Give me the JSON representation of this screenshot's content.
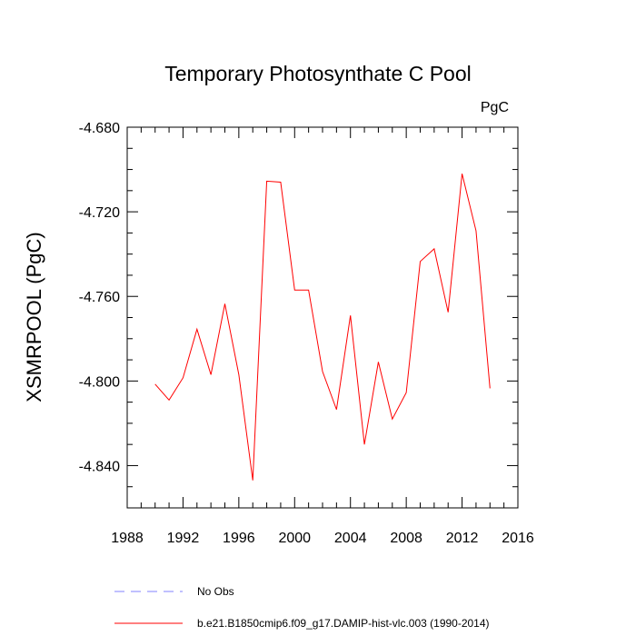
{
  "chart_data": {
    "type": "line",
    "title": "Temporary Photosynthate C Pool",
    "units_label": "PgC",
    "ylabel": "XSMRPOOL  (PgC)",
    "xlabel": "",
    "xlim": [
      1988,
      2016
    ],
    "ylim": [
      -4.86,
      -4.68
    ],
    "x_ticks": [
      1988,
      1992,
      1996,
      2000,
      2004,
      2008,
      2012,
      2016
    ],
    "y_ticks": [
      -4.84,
      -4.8,
      -4.76,
      -4.72,
      -4.68
    ],
    "y_tick_labels": [
      "-4.840",
      "-4.800",
      "-4.760",
      "-4.720",
      "-4.680"
    ],
    "x_tick_labels": [
      "1988",
      "1992",
      "1996",
      "2000",
      "2004",
      "2008",
      "2012",
      "2016"
    ],
    "grid": false,
    "legend_position": "bottom-left",
    "series": [
      {
        "name": "b.e21.B1850cmip6.f09_g17.DAMIP-hist-vlc.003 (1990-2014)",
        "color": "#ff0000",
        "style": "solid",
        "x": [
          1990,
          1991,
          1992,
          1993,
          1994,
          1995,
          1996,
          1997,
          1998,
          1999,
          2000,
          2001,
          2002,
          2003,
          2004,
          2005,
          2006,
          2007,
          2008,
          2009,
          2010,
          2011,
          2012,
          2013,
          2014
        ],
        "y": [
          -4.8015,
          -4.809,
          -4.7985,
          -4.7755,
          -4.797,
          -4.7635,
          -4.797,
          -4.847,
          -4.7055,
          -4.706,
          -4.757,
          -4.757,
          -4.7955,
          -4.8135,
          -4.769,
          -4.83,
          -4.791,
          -4.818,
          -4.8055,
          -4.7435,
          -4.7375,
          -4.7675,
          -4.702,
          -4.729,
          -4.8035
        ]
      },
      {
        "name": "No Obs",
        "color": "#8080ff",
        "style": "dashed",
        "x": [],
        "y": []
      }
    ]
  }
}
